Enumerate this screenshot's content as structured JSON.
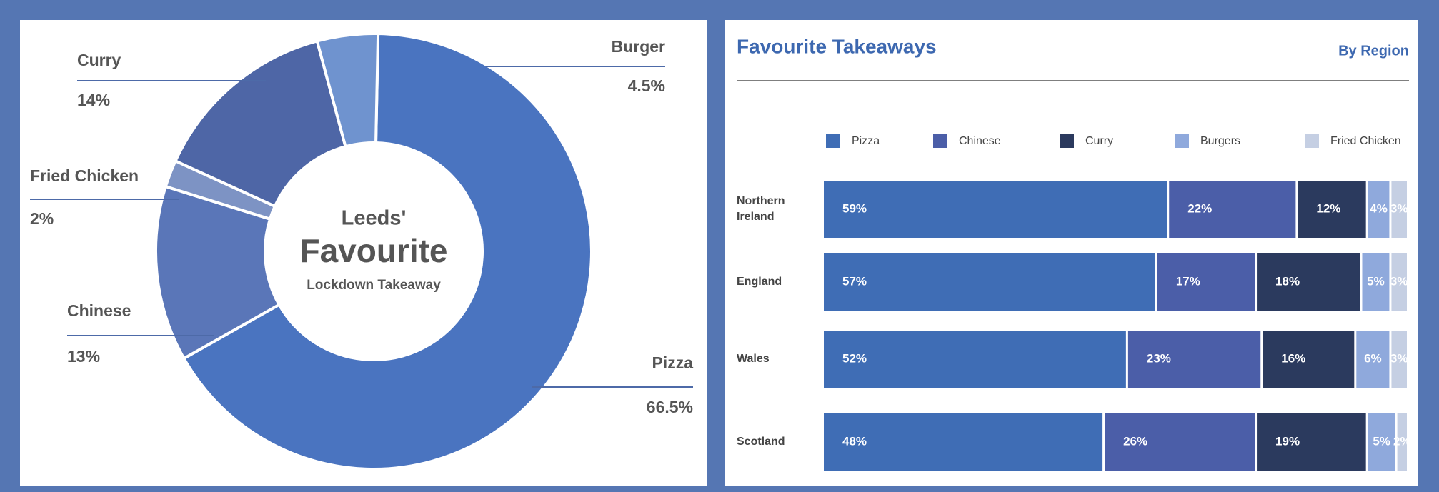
{
  "chart_data": [
    {
      "type": "pie",
      "title_lines": [
        "Leeds'",
        "Favourite",
        "Lockdown Takeaway"
      ],
      "categories": [
        "Pizza",
        "Chinese",
        "Fried Chicken",
        "Curry",
        "Burger"
      ],
      "values": [
        66.5,
        13,
        2,
        14,
        4.5
      ],
      "value_labels": [
        "66.5%",
        "13%",
        "2%",
        "14%",
        "4.5%"
      ],
      "colors": [
        "#4a74c0",
        "#5a76b8",
        "#7d93c4",
        "#4e66a6",
        "#6f93cf"
      ]
    },
    {
      "type": "bar",
      "orientation": "horizontal",
      "stacked": true,
      "title": "Favourite Takeaways",
      "subtitle": "By Region",
      "categories": [
        "Northern Ireland",
        "England",
        "Wales",
        "Scotland"
      ],
      "xlim": [
        0,
        100
      ],
      "legend": "top",
      "series": [
        {
          "name": "Pizza",
          "color": "#3f6db5",
          "values": [
            59,
            57,
            52,
            48
          ],
          "value_labels": [
            "59%",
            "57%",
            "52%",
            "48%"
          ]
        },
        {
          "name": "Chinese",
          "color": "#4b5ea8",
          "values": [
            22,
            17,
            23,
            26
          ],
          "value_labels": [
            "22%",
            "17%",
            "23%",
            "26%"
          ]
        },
        {
          "name": "Curry",
          "color": "#2b3a5e",
          "values": [
            12,
            18,
            16,
            19
          ],
          "value_labels": [
            "12%",
            "18%",
            "16%",
            "19%"
          ]
        },
        {
          "name": "Burgers",
          "color": "#8fa9dc",
          "values": [
            4,
            5,
            6,
            5
          ],
          "value_labels": [
            "4%",
            "5%",
            "6%",
            "5%"
          ]
        },
        {
          "name": "Fried Chicken",
          "color": "#c5cfe3",
          "values": [
            3,
            3,
            3,
            2
          ],
          "value_labels": [
            "3%",
            "3%",
            "3%",
            "2%"
          ]
        }
      ]
    }
  ]
}
